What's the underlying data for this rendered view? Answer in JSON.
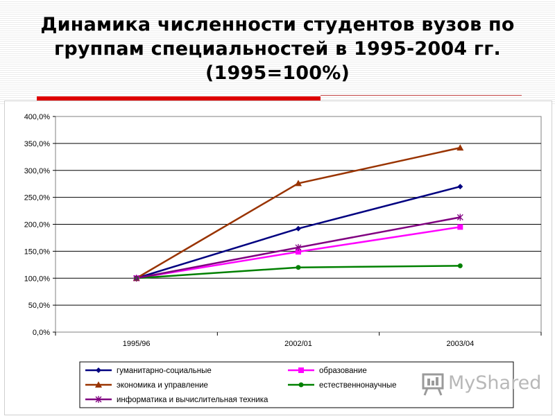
{
  "title": {
    "line1": "Динамика численности студентов вузов по",
    "line2": "группам специальностей в 1995-2004 гг.",
    "line3": "(1995=100%)"
  },
  "watermark": {
    "text": "MyShared"
  },
  "colors": {
    "accent_bar": "#dd0000"
  },
  "chart_data": {
    "type": "line",
    "categories": [
      "1995/96",
      "2002/01",
      "2003/04"
    ],
    "ylim": [
      0,
      400
    ],
    "yticks": [
      "0,0%",
      "50,0%",
      "100,0%",
      "150,0%",
      "200,0%",
      "250,0%",
      "300,0%",
      "350,0%",
      "400,0%"
    ],
    "grid": true,
    "legend": "bottom",
    "series": [
      {
        "name": "гуманитарно-социальные",
        "values": [
          100,
          192,
          270
        ],
        "color": "#000080",
        "marker": "diamond"
      },
      {
        "name": "образование",
        "values": [
          100,
          149,
          195
        ],
        "color": "#ff00ff",
        "marker": "square"
      },
      {
        "name": "экономика и управление",
        "values": [
          100,
          276,
          342
        ],
        "color": "#993300",
        "marker": "triangle"
      },
      {
        "name": "естественнонаучные",
        "values": [
          100,
          120,
          123
        ],
        "color": "#008000",
        "marker": "circle"
      },
      {
        "name": "информатика и вычислительная техника",
        "values": [
          100,
          157,
          213
        ],
        "color": "#800080",
        "marker": "star"
      }
    ]
  }
}
